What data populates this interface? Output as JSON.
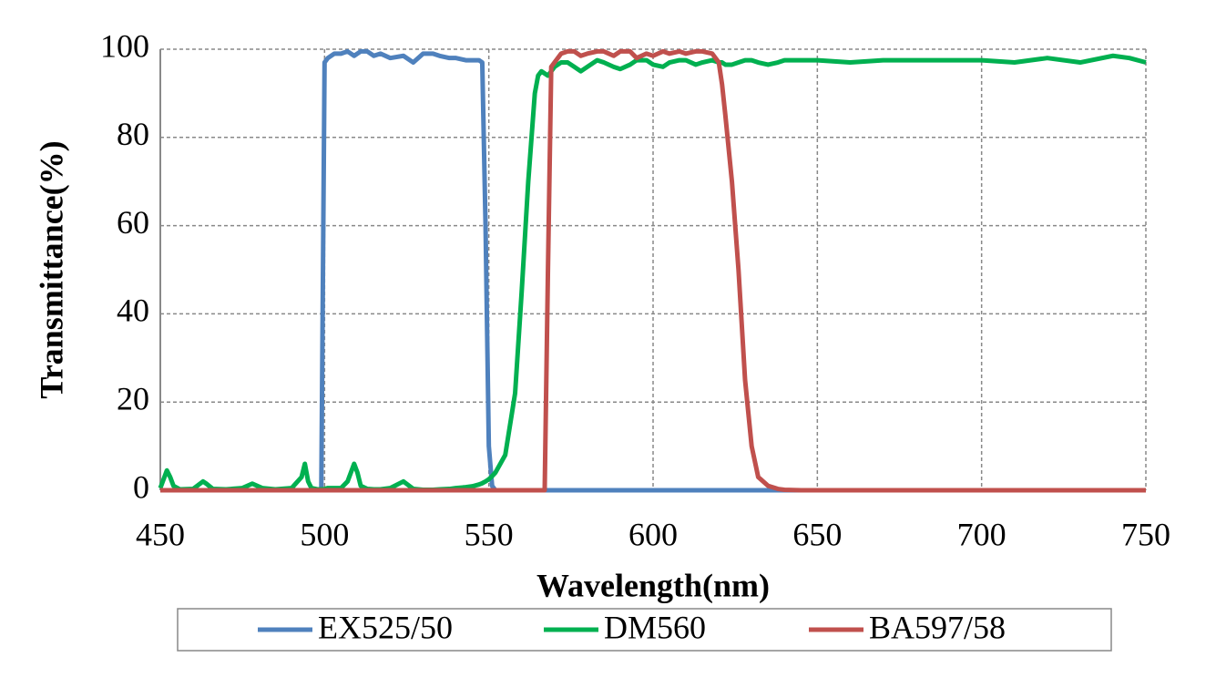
{
  "chart_data": {
    "type": "line",
    "x_label": "Wavelength(nm)",
    "y_label": "Transmittance(%)",
    "x": [
      450,
      452,
      453,
      454,
      456,
      460,
      463,
      464,
      466,
      470,
      475,
      478,
      481,
      485,
      490,
      493,
      494,
      495,
      496,
      498,
      499,
      500,
      501,
      503,
      505,
      507,
      509,
      510,
      511,
      513,
      515,
      517,
      520,
      524,
      527,
      530,
      533,
      535,
      538,
      540,
      543,
      545,
      547,
      548,
      549,
      550,
      551,
      552,
      555,
      558,
      560,
      562,
      564,
      565,
      566,
      567,
      568,
      569,
      570,
      572,
      574,
      576,
      578,
      580,
      583,
      585,
      588,
      590,
      593,
      595,
      598,
      600,
      603,
      605,
      608,
      610,
      613,
      615,
      618,
      620,
      621,
      622,
      624,
      626,
      628,
      630,
      632,
      635,
      638,
      640,
      645,
      650,
      660,
      670,
      680,
      690,
      700,
      710,
      720,
      730,
      740,
      745,
      750
    ],
    "series": [
      {
        "name": "EX525/50",
        "color": "#4f81bd",
        "values": [
          0,
          0,
          0,
          0,
          0,
          0,
          0,
          0,
          0,
          0,
          0,
          0,
          0,
          0,
          0,
          0,
          0,
          0,
          0,
          0,
          0,
          97,
          98,
          99,
          99,
          99.5,
          98.5,
          99,
          99.5,
          99.5,
          98.5,
          99,
          98,
          98.5,
          97,
          99,
          99,
          98.5,
          98,
          98,
          97.5,
          97.5,
          97.5,
          97,
          60,
          10,
          1,
          0,
          0,
          0,
          0,
          0,
          0,
          0,
          0,
          0,
          0,
          0,
          0,
          0,
          0,
          0,
          0,
          0,
          0,
          0,
          0,
          0,
          0,
          0,
          0,
          0,
          0,
          0,
          0,
          0,
          0,
          0,
          0,
          0,
          0,
          0,
          0,
          0,
          0,
          0,
          0,
          0,
          0,
          0,
          0,
          0,
          0,
          0,
          0,
          0,
          0,
          0,
          0,
          0,
          0,
          0,
          0
        ]
      },
      {
        "name": "DM560",
        "color": "#00b050",
        "values": [
          0.5,
          4.5,
          3,
          1,
          0.2,
          0.3,
          2,
          1.5,
          0.3,
          0.2,
          0.5,
          1.5,
          0.5,
          0.2,
          0.5,
          3,
          6,
          2,
          0.5,
          0.2,
          0.2,
          0.3,
          0.5,
          0.5,
          0.5,
          2,
          6,
          4,
          1,
          0.3,
          0.2,
          0.2,
          0.5,
          2,
          0.3,
          0.1,
          0.1,
          0.2,
          0.3,
          0.5,
          0.7,
          0.9,
          1.3,
          1.6,
          2,
          2.5,
          3.2,
          4,
          8,
          22,
          45,
          70,
          90,
          94,
          95,
          94.5,
          94,
          95,
          96,
          97,
          97,
          96,
          95,
          96,
          97.5,
          97,
          96,
          95.5,
          96.5,
          97.5,
          97.5,
          96.5,
          96,
          97,
          97.5,
          97.5,
          96.5,
          97,
          97.5,
          97,
          97,
          96.5,
          96.5,
          97,
          97.5,
          97.5,
          97,
          96.5,
          97,
          97.5,
          97.5,
          97.5,
          97,
          97.5,
          97.5,
          97.5,
          97.5,
          97,
          98,
          97,
          98.5,
          98,
          97
        ]
      },
      {
        "name": "BA597/58",
        "color": "#c0504d",
        "values": [
          0,
          0,
          0,
          0,
          0,
          0,
          0,
          0,
          0,
          0,
          0,
          0,
          0,
          0,
          0,
          0,
          0,
          0,
          0,
          0,
          0,
          0,
          0,
          0,
          0,
          0,
          0,
          0,
          0,
          0,
          0,
          0,
          0,
          0,
          0,
          0,
          0,
          0,
          0,
          0,
          0,
          0,
          0,
          0,
          0,
          0,
          0,
          0,
          0,
          0,
          0,
          0,
          0,
          0,
          0,
          0,
          50,
          96,
          97,
          99,
          99.5,
          99.5,
          98.5,
          99,
          99.5,
          99.5,
          98.5,
          99.5,
          99.5,
          98,
          99,
          98.5,
          99.5,
          99,
          99.5,
          99,
          99.5,
          99.5,
          99,
          97,
          92,
          85,
          70,
          50,
          25,
          10,
          3,
          1,
          0.3,
          0.1,
          0,
          0,
          0,
          0,
          0,
          0,
          0,
          0,
          0,
          0,
          0,
          0,
          0
        ]
      }
    ],
    "xlim": [
      450,
      750
    ],
    "xticks": [
      450,
      500,
      550,
      600,
      650,
      700,
      750
    ],
    "ylim": [
      0,
      100
    ],
    "yticks": [
      0,
      20,
      40,
      60,
      80,
      100
    ],
    "grid": true,
    "legend": "bottom"
  }
}
